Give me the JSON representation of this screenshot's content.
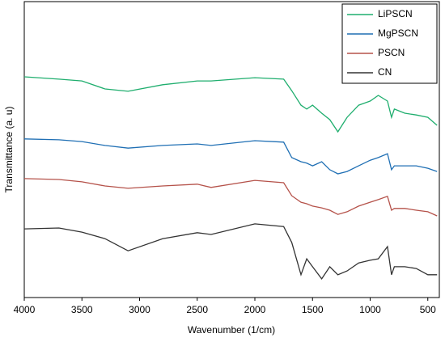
{
  "chart_data": {
    "type": "line",
    "x_label": "Wavenumber (1/cm)",
    "y_label": "Transmittance (a. u)",
    "x": [
      4000,
      3700,
      3500,
      3300,
      3100,
      2800,
      2500,
      2380,
      2000,
      1750,
      1680,
      1600,
      1550,
      1500,
      1420,
      1350,
      1280,
      1200,
      1100,
      1000,
      930,
      850,
      815,
      790,
      700,
      600,
      500,
      420
    ],
    "series": [
      {
        "name": "LiPSCN",
        "color": "#1fae6e",
        "values": [
          74.6,
          73.8,
          73.2,
          70.5,
          69.7,
          71.9,
          73.2,
          73.2,
          74.3,
          73.8,
          69.9,
          65.0,
          63.7,
          65.0,
          62.3,
          60.1,
          56.0,
          60.9,
          65.0,
          66.4,
          68.3,
          66.4,
          60.9,
          63.7,
          62.3,
          61.7,
          60.9,
          58.2
        ]
      },
      {
        "name": "MgPSCN",
        "color": "#1f6fb4",
        "values": [
          53.6,
          53.3,
          52.7,
          51.4,
          50.5,
          51.4,
          51.9,
          51.4,
          53.0,
          52.5,
          47.3,
          45.9,
          45.4,
          44.5,
          45.9,
          43.2,
          41.8,
          42.6,
          44.5,
          46.4,
          47.3,
          48.6,
          43.2,
          44.5,
          44.5,
          44.5,
          43.7,
          42.6
        ]
      },
      {
        "name": "PSCN",
        "color": "#b5524a",
        "values": [
          40.2,
          39.9,
          39.1,
          37.7,
          36.9,
          37.7,
          38.3,
          37.2,
          39.6,
          38.8,
          34.4,
          32.2,
          31.7,
          30.9,
          30.3,
          29.5,
          28.1,
          29.0,
          30.9,
          32.2,
          33.1,
          34.2,
          29.5,
          30.1,
          30.1,
          29.5,
          29.0,
          27.6
        ]
      },
      {
        "name": "CN",
        "color": "#333333",
        "values": [
          23.2,
          23.5,
          22.1,
          19.9,
          15.8,
          19.9,
          21.9,
          21.3,
          24.9,
          24.0,
          18.6,
          7.7,
          13.1,
          10.4,
          6.3,
          10.4,
          7.7,
          9.0,
          11.7,
          12.6,
          13.1,
          17.2,
          7.7,
          10.4,
          10.4,
          9.8,
          7.7,
          7.7
        ]
      }
    ],
    "xlim": [
      4000,
      400
    ],
    "xticks": [
      4000,
      3500,
      3000,
      2500,
      2000,
      1500,
      1000,
      500
    ],
    "ylim": [
      0,
      100
    ],
    "legend": "upper right"
  }
}
